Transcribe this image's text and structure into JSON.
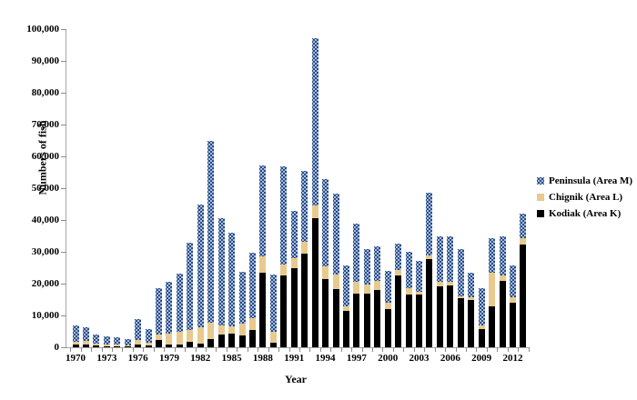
{
  "chart_data": {
    "type": "bar",
    "stacked": true,
    "title": "",
    "xlabel": "Year",
    "ylabel": "Numbers of fish",
    "ylim": [
      0,
      100000
    ],
    "ytick_step": 10000,
    "grid": false,
    "legend_position": "right",
    "ytick_labels": [
      "0",
      "10,000",
      "20,000",
      "30,000",
      "40,000",
      "50,000",
      "60,000",
      "70,000",
      "80,000",
      "90,000",
      "100,000"
    ],
    "xtick_labels": [
      "1970",
      "1973",
      "1976",
      "1979",
      "1982",
      "1985",
      "1988",
      "1991",
      "1994",
      "1997",
      "2000",
      "2003",
      "2006",
      "2009",
      "2012"
    ],
    "xtick_year_step": 3,
    "x": [
      1970,
      1971,
      1972,
      1973,
      1974,
      1975,
      1976,
      1977,
      1978,
      1979,
      1980,
      1981,
      1982,
      1983,
      1984,
      1985,
      1986,
      1987,
      1988,
      1989,
      1990,
      1991,
      1992,
      1993,
      1994,
      1995,
      1996,
      1997,
      1998,
      1999,
      2000,
      2001,
      2002,
      2003,
      2004,
      2005,
      2006,
      2007,
      2008,
      2009,
      2010,
      2011,
      2012,
      2013
    ],
    "series": [
      {
        "key": "kodiak",
        "name": "Kodiak (Area K)",
        "color": "#000000",
        "pattern": "solid",
        "values": [
          800,
          800,
          600,
          400,
          400,
          300,
          1000,
          500,
          2300,
          1000,
          1000,
          1700,
          1100,
          2500,
          3900,
          4200,
          3600,
          5300,
          23500,
          1500,
          22500,
          25000,
          29400,
          40500,
          21500,
          18200,
          11500,
          16800,
          17000,
          17900,
          12000,
          22700,
          16500,
          16500,
          27700,
          19100,
          19300,
          15300,
          15000,
          5800,
          13000,
          21000,
          14100,
          32200
        ]
      },
      {
        "key": "chignik",
        "name": "Chignik (Area L)",
        "color": "#e8ca8e",
        "pattern": "solid",
        "values": [
          900,
          1200,
          600,
          600,
          500,
          300,
          1300,
          1000,
          1600,
          3400,
          3900,
          3600,
          5200,
          5200,
          2900,
          2300,
          3800,
          3800,
          5000,
          3400,
          3500,
          3000,
          3800,
          4000,
          3800,
          4800,
          1500,
          3800,
          2600,
          3100,
          1900,
          1700,
          2000,
          1000,
          1300,
          1500,
          1200,
          700,
          800,
          1000,
          10300,
          1500,
          1700,
          2200
        ]
      },
      {
        "key": "peninsula",
        "name": "Peninsula (Area M)",
        "color": "#1c3f7d",
        "pattern": "speckled-dots",
        "values": [
          5100,
          4300,
          2700,
          2400,
          2300,
          1900,
          6700,
          4300,
          14600,
          16100,
          18300,
          27700,
          38600,
          57200,
          33800,
          29500,
          16200,
          20700,
          28700,
          18100,
          31000,
          14800,
          22100,
          52700,
          27700,
          25200,
          12800,
          18400,
          11400,
          10700,
          10000,
          8100,
          11600,
          9700,
          19700,
          14300,
          14500,
          15000,
          7600,
          11700,
          11100,
          12400,
          10000,
          7500
        ]
      }
    ],
    "legend_order": [
      "peninsula",
      "chignik",
      "kodiak"
    ]
  }
}
